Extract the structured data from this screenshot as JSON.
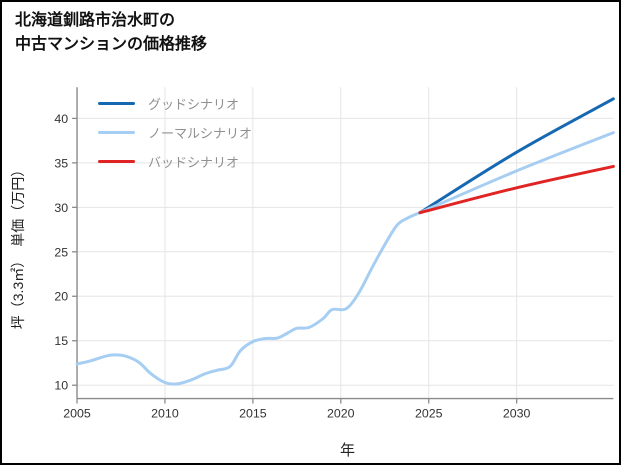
{
  "header": {
    "title_line1": "北海道釧路市治水町の",
    "title_line2": "中古マンションの価格推移"
  },
  "axes": {
    "x_label": "年",
    "y_label": "坪（3.3㎡）　単価（万円）"
  },
  "colors": {
    "good_scenario": "#1668b2",
    "normal_scenario": "#a6cdf2",
    "bad_scenario": "#e02424",
    "gridline": "#e5e5e5",
    "axis_spine": "#8a8a8a",
    "tick_text": "#333333"
  },
  "chart_data": {
    "type": "line",
    "title": "北海道釧路市治水町の中古マンションの価格推移",
    "xlabel": "年",
    "ylabel": "坪（3.3㎡）　単価（万円）",
    "xlim": [
      2005,
      2035.5
    ],
    "ylim": [
      8.5,
      43.5
    ],
    "xticks": [
      2005,
      2010,
      2015,
      2020,
      2025,
      2030
    ],
    "yticks": [
      10,
      15,
      20,
      25,
      30,
      35,
      40
    ],
    "grid": true,
    "legend_position": "top-left",
    "series": [
      {
        "id": "history",
        "color": "#a6cdf2",
        "width": 3,
        "legend": false,
        "x": [
          2005,
          2005.7,
          2006.5,
          2007,
          2007.7,
          2008.5,
          2009.2,
          2010,
          2010.7,
          2011.5,
          2012.3,
          2013,
          2013.7,
          2014.3,
          2015,
          2015.7,
          2016.4,
          2017,
          2017.5,
          2018.2,
          2019,
          2019.5,
          2020.3,
          2021,
          2021.8,
          2022.5,
          2023.2,
          2023.8,
          2024.5
        ],
        "y": [
          12.4,
          12.7,
          13.2,
          13.4,
          13.3,
          12.6,
          11.3,
          10.3,
          10.15,
          10.6,
          11.3,
          11.7,
          12.1,
          13.9,
          14.9,
          15.25,
          15.3,
          15.9,
          16.4,
          16.5,
          17.5,
          18.5,
          18.6,
          20.3,
          23.3,
          25.8,
          28.0,
          28.8,
          29.4
        ]
      },
      {
        "id": "good",
        "name": "グッドシナリオ",
        "color": "#1668b2",
        "width": 3,
        "legend": true,
        "x": [
          2024.5,
          2030,
          2035.5
        ],
        "y": [
          29.4,
          36.2,
          42.2
        ]
      },
      {
        "id": "normal",
        "name": "ノーマルシナリオ",
        "color": "#a6cdf2",
        "width": 3,
        "legend": true,
        "x": [
          2024.5,
          2030,
          2035.5
        ],
        "y": [
          29.4,
          34.1,
          38.4
        ]
      },
      {
        "id": "bad",
        "name": "バッドシナリオ",
        "color": "#e02424",
        "width": 3,
        "legend": true,
        "x": [
          2024.5,
          2030,
          2035.5
        ],
        "y": [
          29.4,
          32.2,
          34.6
        ]
      }
    ]
  }
}
